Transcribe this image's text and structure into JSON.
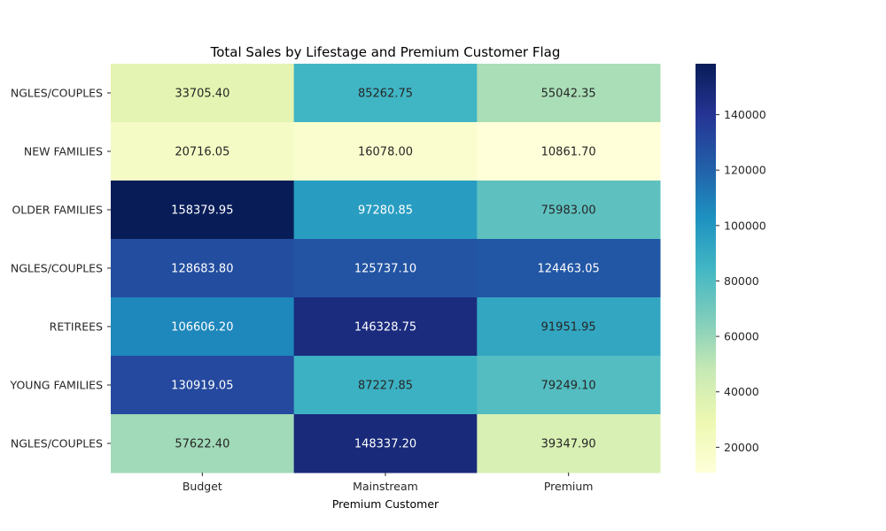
{
  "chart_data": {
    "type": "heatmap",
    "title": "Total Sales by Lifestage and Premium Customer Flag",
    "xlabel": "Premium Customer",
    "ylabel": "",
    "x_categories": [
      "Budget",
      "Mainstream",
      "Premium"
    ],
    "y_categories": [
      "NGLES/COUPLES",
      "NEW FAMILIES",
      "OLDER FAMILIES",
      "NGLES/COUPLES",
      "RETIREES",
      "YOUNG FAMILIES",
      "NGLES/COUPLES"
    ],
    "values": [
      [
        33705.4,
        85262.75,
        55042.35
      ],
      [
        20716.05,
        16078.0,
        10861.7
      ],
      [
        158379.95,
        97280.85,
        75983.0
      ],
      [
        128683.8,
        125737.1,
        124463.05
      ],
      [
        106606.2,
        146328.75,
        91951.95
      ],
      [
        130919.05,
        87227.85,
        79249.1
      ],
      [
        57622.4,
        148337.2,
        39347.9
      ]
    ],
    "value_labels": [
      [
        "33705.40",
        "85262.75",
        "55042.35"
      ],
      [
        "20716.05",
        "16078.00",
        "10861.70"
      ],
      [
        "158379.95",
        "97280.85",
        "75983.00"
      ],
      [
        "128683.80",
        "125737.10",
        "124463.05"
      ],
      [
        "106606.20",
        "146328.75",
        "91951.95"
      ],
      [
        "130919.05",
        "87227.85",
        "79249.10"
      ],
      [
        "57622.40",
        "148337.20",
        "39347.90"
      ]
    ],
    "colormap": "YlGnBu",
    "colorbar": {
      "range": [
        10861.7,
        158379.95
      ],
      "ticks": [
        20000,
        40000,
        60000,
        80000,
        100000,
        120000,
        140000
      ],
      "tick_labels": [
        "20000",
        "40000",
        "60000",
        "80000",
        "100000",
        "120000",
        "140000"
      ]
    },
    "colors": [
      "#ffffd9",
      "#edf8b1",
      "#c7e9b4",
      "#7fcdbb",
      "#41b6c4",
      "#1d91c0",
      "#225ea8",
      "#253494",
      "#081d58"
    ]
  }
}
